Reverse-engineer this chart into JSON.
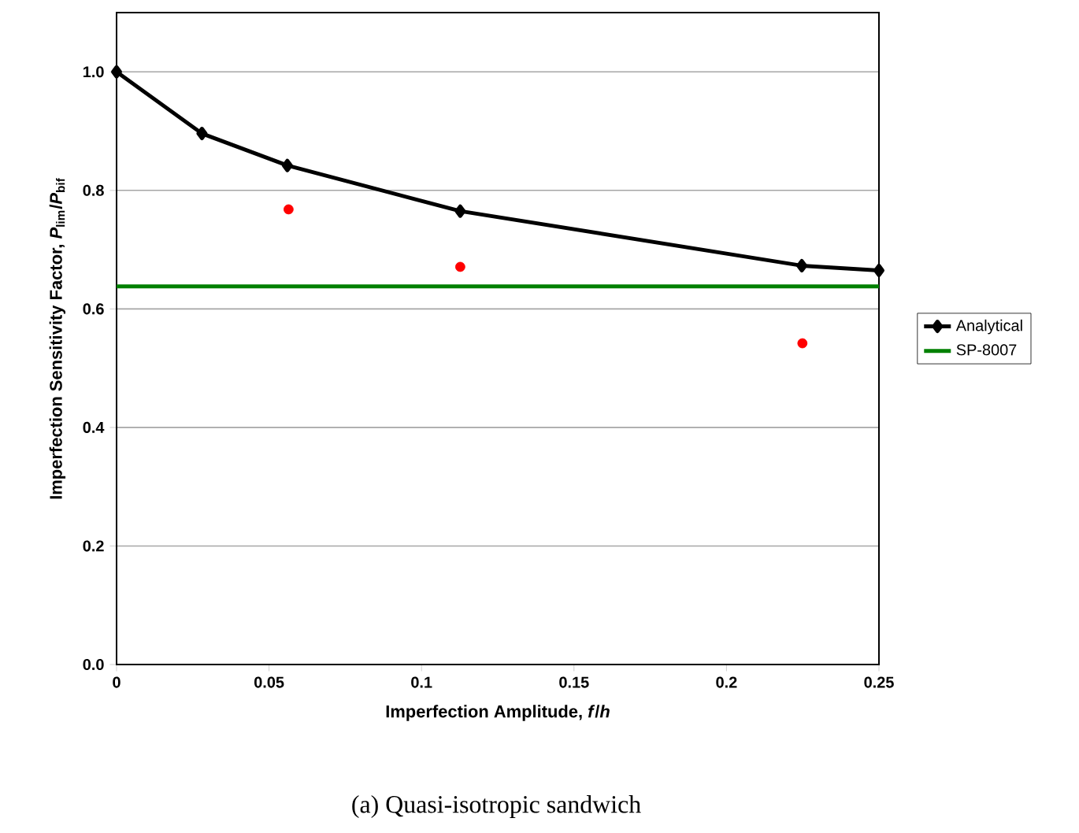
{
  "chart_data": {
    "type": "line",
    "xlabel": "Imperfection Amplitude, *f*/*h*",
    "ylabel": "Imperfection Sensitivity Factor, *P*$_{lim}$/*P*$_{bif}$",
    "xlim": [
      0,
      0.25
    ],
    "xticks": [
      0,
      0.05,
      0.1,
      0.15,
      0.2,
      0.25
    ],
    "ylim": [
      0,
      1.1
    ],
    "yticks": [
      {
        "value": 0,
        "label": "0.0"
      },
      0.2,
      0.4,
      0.6,
      0.8,
      {
        "value": 1,
        "label": "1.0"
      }
    ],
    "grid": "y",
    "legend": "right",
    "series": [
      {
        "name": "Analytical",
        "type": "line",
        "color": "#000000",
        "marker": "diamond",
        "x": [
          0,
          0.028,
          0.056,
          0.1127,
          0.2247,
          0.25
        ],
        "values": [
          1.0,
          0.896,
          0.842,
          0.765,
          0.673,
          0.665
        ]
      },
      {
        "type": "scatter",
        "color": "#ff0000",
        "marker": "circle",
        "x": [
          0.0564,
          0.1127,
          0.2249
        ],
        "values": [
          0.768,
          0.671,
          0.542
        ]
      },
      {
        "name": "SP-8007",
        "color": "#008000",
        "marker": "none",
        "x": [
          0,
          0.25
        ],
        "values": [
          0.638,
          0.638
        ]
      }
    ],
    "annotations": [
      "(a) Quasi-isotropic sandwich"
    ]
  }
}
